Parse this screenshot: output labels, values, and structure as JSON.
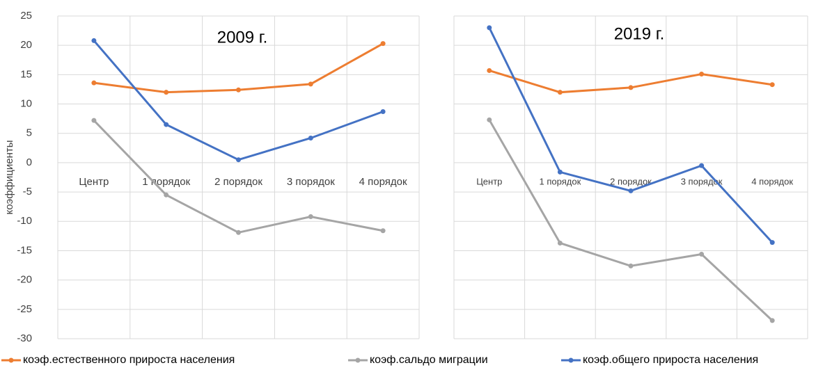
{
  "chart_data": [
    {
      "type": "line",
      "title": "2009 г.",
      "y_label": "коэффициенты",
      "categories": [
        "Центр",
        "1 порядок",
        "2 порядок",
        "3 порядок",
        "4 порядок"
      ],
      "ylim": [
        -30,
        25
      ],
      "yticks": [
        -30,
        -25,
        -20,
        -15,
        -10,
        -5,
        0,
        5,
        10,
        15,
        20,
        25
      ],
      "grid": true,
      "series": [
        {
          "name": "коэф.естественного прироста населения",
          "color": "#ed7d31",
          "values": [
            13.6,
            12.0,
            12.4,
            13.4,
            20.3
          ]
        },
        {
          "name": "коэф.сальдо миграции",
          "color": "#a5a5a5",
          "values": [
            7.2,
            -5.5,
            -11.9,
            -9.2,
            -11.6
          ]
        },
        {
          "name": "коэф.общего прироста населения",
          "color": "#4472c4",
          "values": [
            20.8,
            6.5,
            0.5,
            4.2,
            8.7
          ]
        }
      ]
    },
    {
      "type": "line",
      "title": "2019 г.",
      "categories": [
        "Центр",
        "1 порядок",
        "2 порядок",
        "3 порядок",
        "4 порядок"
      ],
      "ylim": [
        -30,
        25
      ],
      "yticks": [
        -30,
        -25,
        -20,
        -15,
        -10,
        -5,
        0,
        5,
        10,
        15,
        20,
        25
      ],
      "grid": true,
      "series": [
        {
          "color": "#ed7d31",
          "values": [
            15.7,
            12.0,
            12.8,
            15.1,
            13.3
          ]
        },
        {
          "color": "#a5a5a5",
          "values": [
            7.3,
            -13.7,
            -17.6,
            -15.6,
            -26.9
          ]
        },
        {
          "color": "#4472c4",
          "values": [
            23.0,
            -1.6,
            -4.8,
            -0.5,
            -13.6
          ]
        }
      ]
    }
  ]
}
